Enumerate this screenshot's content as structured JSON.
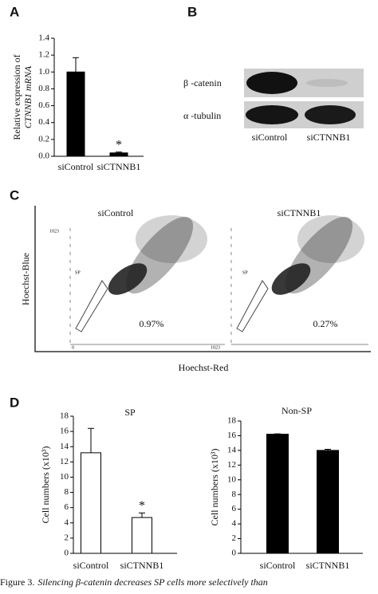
{
  "panel_labels": [
    "A",
    "B",
    "C",
    "D"
  ],
  "chart_data": [
    {
      "type": "bar",
      "ylabel": [
        "Relative expression of",
        "CTNNB1 mRNA"
      ],
      "categories": [
        "siControl",
        "siCTNNB1"
      ],
      "values": [
        1.0,
        0.04
      ],
      "errors": [
        0.17,
        0.01
      ],
      "color": "#000000",
      "annotation": "*",
      "ylim": [
        0,
        1.4
      ],
      "yticks": [
        {
          "value": 0,
          "label": "0.0"
        },
        {
          "value": 0.2,
          "label": "0.2"
        },
        {
          "value": 0.4,
          "label": "0.4"
        },
        {
          "value": 0.6,
          "label": "0.6"
        },
        {
          "value": 0.8,
          "label": "0.8"
        },
        {
          "value": 1,
          "label": "1.0"
        },
        {
          "value": 1.2,
          "label": "1.2"
        },
        {
          "value": 1.4,
          "label": "1.4"
        }
      ]
    },
    {
      "type": "bar",
      "title": "SP",
      "ylabel": [
        "Cell numbers (x10³)"
      ],
      "categories": [
        "siControl",
        "siCTNNB1"
      ],
      "values": [
        13.2,
        4.7
      ],
      "errors": [
        3.2,
        0.6
      ],
      "color": "#ffffff",
      "annotation": "*",
      "ylim": [
        0,
        18
      ],
      "yticks": [
        0,
        2,
        4,
        6,
        8,
        10,
        12,
        14,
        16,
        18
      ]
    },
    {
      "type": "bar",
      "title": "Non-SP",
      "ylabel": [
        "Cell numbers (x10³)"
      ],
      "categories": [
        "siControl",
        "siCTNNB1"
      ],
      "values": [
        16.2,
        14.0
      ],
      "errors": [
        0.05,
        0.15
      ],
      "color": "#000000",
      "ylim": [
        0,
        18
      ],
      "yticks": [
        0,
        2,
        4,
        6,
        8,
        10,
        12,
        14,
        16,
        18
      ]
    }
  ],
  "blot": {
    "rows": [
      "β -catenin",
      "α -tubulin"
    ],
    "lanes": [
      "siControl",
      "siCTNNB1"
    ]
  },
  "flow": {
    "plots": [
      {
        "title": "siControl",
        "gate": "SP",
        "percent": "0.97%"
      },
      {
        "title": "siCTNNB1",
        "gate": "SP",
        "percent": "0.27%"
      }
    ],
    "ylabel": "Hoechst-Blue",
    "xlabel": "Hoechst-Red",
    "axis_min": "0",
    "axis_max": "1023"
  },
  "caption": {
    "label": "Figure 3.",
    "text": "Silencing β-catenin decreases SP cells more selectively than"
  }
}
